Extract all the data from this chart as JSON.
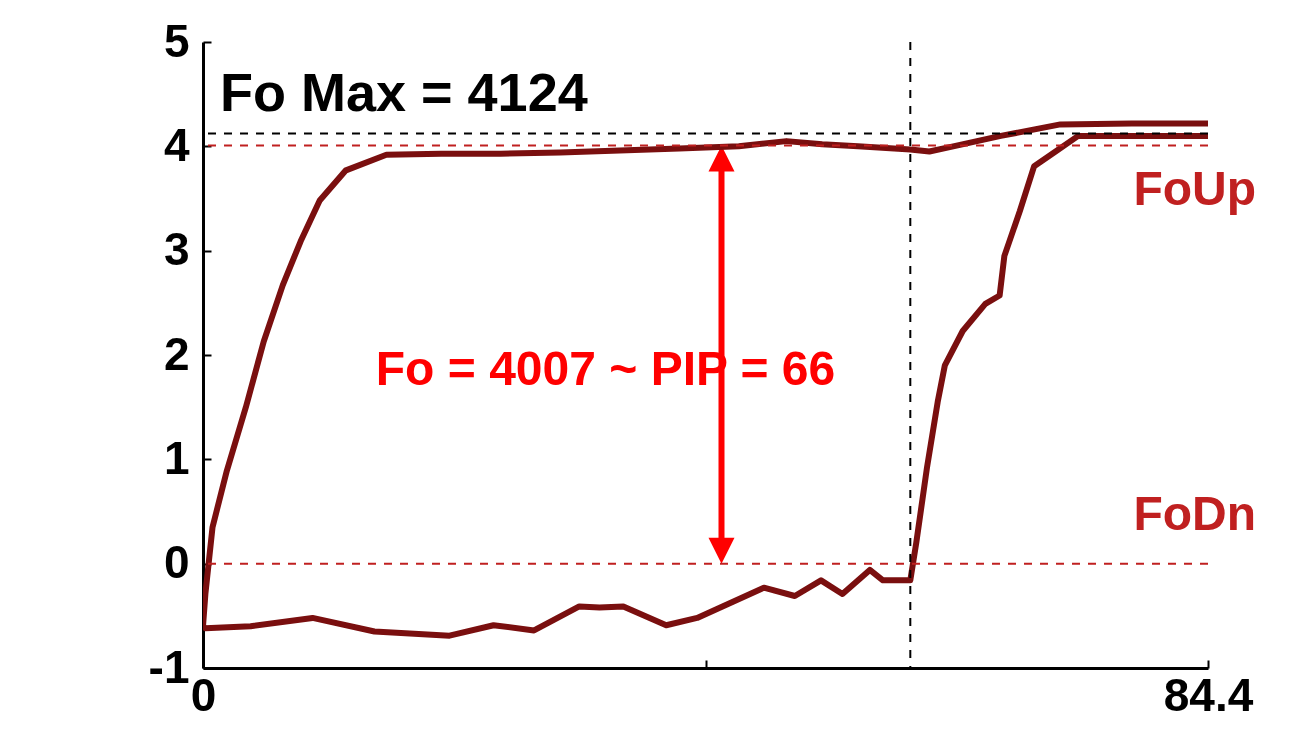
{
  "chart_data": {
    "type": "line",
    "xlim": [
      0,
      84.4
    ],
    "xticks": [
      0,
      {
        "value": 42.2,
        "label": null
      },
      84.4
    ],
    "ylim": [
      -1,
      5
    ],
    "yticks": [
      -1,
      0,
      1,
      2,
      3,
      4,
      5
    ],
    "grid": false,
    "marker": "none",
    "line_style": "solid",
    "series": [
      {
        "color": "#7a0f0f",
        "x": [
          0,
          0.2,
          0.8,
          2.0,
          3.6,
          5.1,
          6.7,
          8.2,
          9.8,
          12.0,
          15.4,
          20,
          25,
          30,
          35,
          40,
          45,
          49,
          52,
          55,
          59.4,
          61,
          63,
          67,
          72,
          78,
          84.4
        ],
        "values": [
          -0.6,
          -0.29,
          0.35,
          0.89,
          1.5,
          2.13,
          2.67,
          3.09,
          3.48,
          3.77,
          3.92,
          3.93,
          3.93,
          3.94,
          3.96,
          3.98,
          4.0,
          4.05,
          4.02,
          4.0,
          3.97,
          3.95,
          4.0,
          4.1,
          4.21,
          4.22,
          4.22
        ]
      },
      {
        "color": "#7a0f0f",
        "x": [
          0,
          0.2,
          4,
          9.2,
          14.4,
          20.7,
          24.4,
          27.8,
          31.6,
          33.3,
          35.3,
          38.9,
          41.5,
          47.1,
          49.7,
          51.9,
          53.7,
          56,
          57.1,
          59.4,
          59.9,
          60.8,
          61.7,
          62.3,
          63.8,
          65.7,
          66.9,
          67.3,
          68.6,
          69.8,
          71.6,
          73.5,
          84.4
        ],
        "values": [
          -0.6,
          -0.62,
          -0.6,
          -0.52,
          -0.65,
          -0.69,
          -0.59,
          -0.64,
          -0.41,
          -0.42,
          -0.41,
          -0.59,
          -0.52,
          -0.23,
          -0.31,
          -0.16,
          -0.29,
          -0.06,
          -0.16,
          -0.16,
          0.2,
          0.92,
          1.55,
          1.9,
          2.23,
          2.49,
          2.57,
          2.95,
          3.38,
          3.81,
          3.95,
          4.1,
          4.1
        ]
      }
    ],
    "ref_lines": [
      {
        "axis": "y",
        "value": 4.124,
        "label": "Fo Max = 4124",
        "color": "#000000",
        "line_style": "dashed"
      },
      {
        "axis": "y",
        "value": 4.007,
        "label": "FoUp",
        "color": "#c02020",
        "line_style": "dashed"
      },
      {
        "axis": "y",
        "value": 0,
        "label": "FoDn",
        "color": "#c02020",
        "line_style": "dashed"
      },
      {
        "axis": "x",
        "value": 59.4,
        "color": "#000000",
        "line_style": "dashed"
      }
    ],
    "annotations": [
      "Fo = 4007 ~ PIP = 66"
    ]
  }
}
